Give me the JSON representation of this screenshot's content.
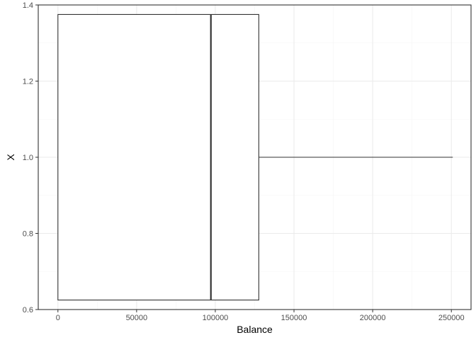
{
  "chart_data": {
    "type": "boxplot",
    "orientation": "horizontal",
    "xlabel": "Balance",
    "ylabel": "X",
    "xlim": [
      -12500,
      262500
    ],
    "ylim": [
      0.6,
      1.4
    ],
    "x_ticks": [
      0,
      50000,
      100000,
      150000,
      200000,
      250000
    ],
    "x_tick_labels": [
      "0",
      "50000",
      "100000",
      "150000",
      "200000",
      "250000"
    ],
    "y_ticks": [
      0.6,
      0.8,
      1.0,
      1.2,
      1.4
    ],
    "y_tick_labels": [
      "0.6",
      "0.8",
      "1.0",
      "1.2",
      "1.4"
    ],
    "grid": true,
    "theme": "bw",
    "box": {
      "y_center": 1.0,
      "y_low": 0.625,
      "y_high": 1.375,
      "min": 0,
      "q1": 0,
      "median": 97199,
      "q3": 127644,
      "max": 250898
    },
    "colors": {
      "panel_border": "#333333",
      "grid_major": "#ebebeb",
      "grid_minor": "#f5f5f5",
      "box_stroke": "#333333",
      "box_fill": "#ffffff"
    }
  }
}
